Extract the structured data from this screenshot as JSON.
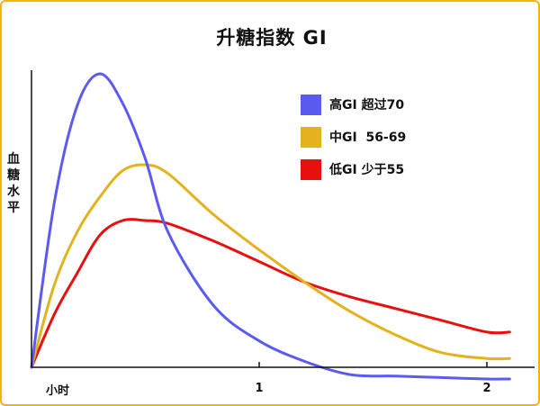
{
  "chart_data": {
    "type": "line",
    "title": "升糖指数  GI",
    "ylabel": "血糖水平",
    "xlabel": "小时",
    "x_ticks": [
      "1",
      "2"
    ],
    "xlim": [
      0,
      2.1
    ],
    "ylim": [
      0,
      10
    ],
    "grid": false,
    "legend_position": "top-right",
    "series": [
      {
        "name": "高GI 超过70",
        "color": "#5b5bf0",
        "points": [
          [
            0,
            0
          ],
          [
            0.1,
            5.6
          ],
          [
            0.2,
            8.9
          ],
          [
            0.3,
            10
          ],
          [
            0.4,
            9
          ],
          [
            0.5,
            7.1
          ],
          [
            0.6,
            4.6
          ],
          [
            0.8,
            2.1
          ],
          [
            1,
            0.9
          ],
          [
            1.2,
            0.2
          ],
          [
            1.4,
            -0.25
          ],
          [
            1.6,
            -0.3
          ],
          [
            1.8,
            -0.35
          ],
          [
            2,
            -0.4
          ],
          [
            2.1,
            -0.4
          ]
        ]
      },
      {
        "name": "中GI  56-69",
        "color": "#e3b21c",
        "points": [
          [
            0,
            0
          ],
          [
            0.1,
            2.8
          ],
          [
            0.2,
            4.6
          ],
          [
            0.3,
            5.8
          ],
          [
            0.4,
            6.7
          ],
          [
            0.5,
            6.9
          ],
          [
            0.6,
            6.6
          ],
          [
            0.8,
            5.2
          ],
          [
            1,
            4.0
          ],
          [
            1.2,
            2.9
          ],
          [
            1.4,
            1.9
          ],
          [
            1.6,
            1.1
          ],
          [
            1.8,
            0.5
          ],
          [
            2,
            0.3
          ],
          [
            2.1,
            0.3
          ]
        ]
      },
      {
        "name": "低GI 少于55",
        "color": "#e80f0f",
        "points": [
          [
            0,
            0
          ],
          [
            0.1,
            1.8
          ],
          [
            0.2,
            3.2
          ],
          [
            0.3,
            4.5
          ],
          [
            0.4,
            5.0
          ],
          [
            0.5,
            5.0
          ],
          [
            0.6,
            4.9
          ],
          [
            0.8,
            4.3
          ],
          [
            1,
            3.6
          ],
          [
            1.2,
            2.9
          ],
          [
            1.4,
            2.4
          ],
          [
            1.6,
            2.0
          ],
          [
            1.8,
            1.6
          ],
          [
            2,
            1.2
          ],
          [
            2.1,
            1.2
          ]
        ]
      }
    ]
  }
}
